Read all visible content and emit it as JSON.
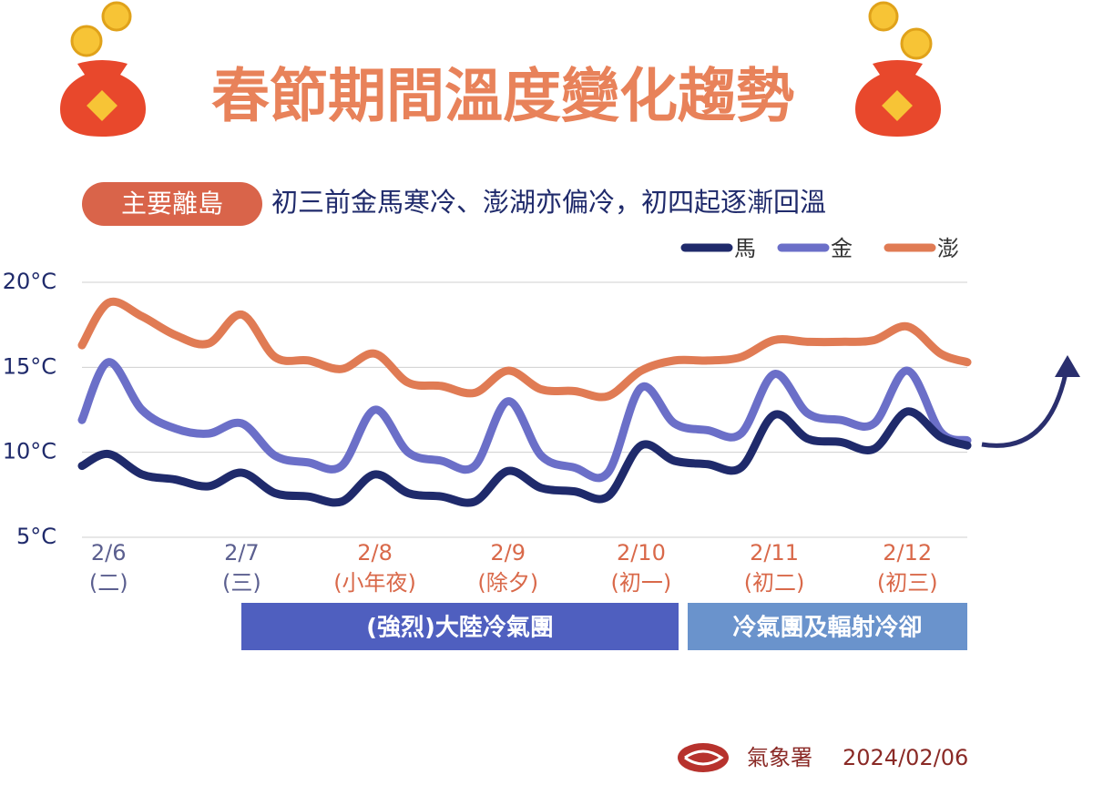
{
  "chart_data": {
    "type": "line",
    "title": "春節期間溫度變化趨勢",
    "badge": "主要離島",
    "subtitle": "初三前金馬寒冷、澎湖亦偏冷，初四起逐漸回溫",
    "x": [
      -0.2,
      0,
      0.25,
      0.5,
      0.75,
      1,
      1.25,
      1.5,
      1.75,
      2,
      2.25,
      2.5,
      2.75,
      3,
      3.25,
      3.5,
      3.75,
      4,
      4.25,
      4.5,
      4.75,
      5,
      5.25,
      5.5,
      5.75,
      6,
      6.25,
      6.45
    ],
    "xlim": [
      -0.2,
      6.45
    ],
    "xticks": [
      {
        "value": 0,
        "label": "2/6"
      },
      {
        "value": 1,
        "label": "2/7"
      },
      {
        "value": 2,
        "label": "2/8"
      },
      {
        "value": 3,
        "label": "2/9"
      },
      {
        "value": 4,
        "label": "2/10"
      },
      {
        "value": 5,
        "label": "2/11"
      },
      {
        "value": 6,
        "label": "2/12"
      }
    ],
    "xtick_notes": [
      "(二)",
      "(三)",
      "(小年夜)",
      "(除夕)",
      "(初一)",
      "(初二)",
      "(初三)"
    ],
    "xtick_colors": [
      "#5b5f8f",
      "#5b5f8f",
      "#d9694a",
      "#d9694a",
      "#d9694a",
      "#d9694a",
      "#d9694a"
    ],
    "ylim": [
      5,
      20
    ],
    "yticks": [
      {
        "value": 5,
        "label": "5°C"
      },
      {
        "value": 10,
        "label": "10°C"
      },
      {
        "value": 15,
        "label": "15°C"
      },
      {
        "value": 20,
        "label": "20°C"
      }
    ],
    "grid": true,
    "series": [
      {
        "name": "馬",
        "color": "#1f2a6b",
        "values": [
          9.2,
          9.9,
          8.7,
          8.4,
          8.0,
          8.8,
          7.6,
          7.4,
          7.1,
          8.7,
          7.6,
          7.4,
          7.1,
          8.9,
          7.9,
          7.7,
          7.4,
          10.4,
          9.5,
          9.3,
          9.1,
          12.2,
          10.8,
          10.6,
          10.2,
          12.4,
          10.9,
          10.4
        ]
      },
      {
        "name": "金",
        "color": "#6b6fc8",
        "values": [
          11.9,
          15.3,
          12.5,
          11.4,
          11.1,
          11.7,
          9.8,
          9.4,
          9.2,
          12.5,
          10.0,
          9.5,
          9.2,
          13.0,
          9.8,
          9.1,
          8.8,
          13.8,
          11.7,
          11.3,
          11.1,
          14.6,
          12.3,
          11.9,
          11.7,
          14.8,
          11.2,
          10.7
        ]
      },
      {
        "name": "澎",
        "color": "#e07b54",
        "values": [
          16.3,
          18.8,
          18.0,
          16.9,
          16.4,
          18.1,
          15.6,
          15.4,
          14.9,
          15.8,
          14.1,
          13.9,
          13.5,
          14.8,
          13.7,
          13.6,
          13.3,
          14.8,
          15.4,
          15.4,
          15.6,
          16.6,
          16.5,
          16.5,
          16.6,
          17.4,
          15.8,
          15.3
        ]
      }
    ],
    "bands": [
      {
        "label": "(強烈)大陸冷氣團",
        "color": "#4f5fbf"
      },
      {
        "label": "冷氣團及輻射冷卻",
        "color": "#6a93cc"
      }
    ],
    "source": "氣象署",
    "date": "2024/02/06"
  }
}
